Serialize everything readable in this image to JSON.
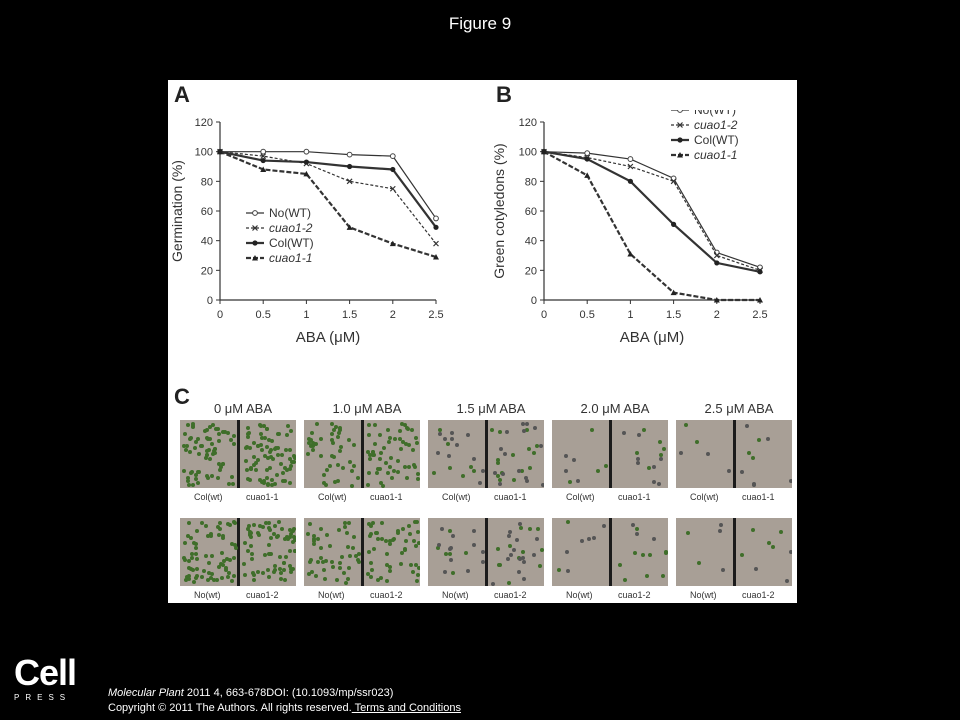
{
  "slide": {
    "title": "Figure 9"
  },
  "figure": {
    "panel_a": "A",
    "panel_b": "B",
    "panel_c": "C",
    "panel_c_concentrations": [
      "0 μM ABA",
      "1.0 μM ABA",
      "1.5 μM ABA",
      "2.0 μM ABA",
      "2.5 μM ABA"
    ],
    "panel_c_row1": {
      "left": "Col(wt)",
      "right": "cuao1-1"
    },
    "panel_c_row2": {
      "left": "No(wt)",
      "right": "cuao1-2"
    }
  },
  "chart_data": [
    {
      "type": "line",
      "panel": "A",
      "xlabel": "ABA (μM)",
      "ylabel": "Germination (%)",
      "x": [
        0,
        0.5,
        1,
        1.5,
        2,
        2.5
      ],
      "x_ticks": [
        "0",
        "0.5",
        "1",
        "1.5",
        "2",
        "2.5"
      ],
      "y_ticks": [
        "0",
        "20",
        "40",
        "60",
        "80",
        "100",
        "120"
      ],
      "xlim": [
        0,
        2.5
      ],
      "ylim": [
        0,
        120
      ],
      "legend_position": "center-left",
      "series": [
        {
          "name": "No(WT)",
          "values": [
            100,
            100,
            100,
            98,
            97,
            55
          ]
        },
        {
          "name": "cuao1-2",
          "values": [
            100,
            97,
            92,
            80,
            75,
            38
          ]
        },
        {
          "name": "Col(WT)",
          "values": [
            100,
            94,
            93,
            90,
            88,
            49
          ]
        },
        {
          "name": "cuao1-1",
          "values": [
            100,
            88,
            85,
            49,
            38,
            29
          ]
        }
      ]
    },
    {
      "type": "line",
      "panel": "B",
      "xlabel": "ABA (μM)",
      "ylabel": "Green cotyledons (%)",
      "x": [
        0,
        0.5,
        1,
        1.5,
        2,
        2.5
      ],
      "x_ticks": [
        "0",
        "0.5",
        "1",
        "1.5",
        "2",
        "2.5"
      ],
      "y_ticks": [
        "0",
        "20",
        "40",
        "60",
        "80",
        "100",
        "120"
      ],
      "xlim": [
        0,
        2.5
      ],
      "ylim": [
        0,
        120
      ],
      "legend_position": "top-right",
      "series": [
        {
          "name": "No(WT)",
          "values": [
            100,
            99,
            95,
            82,
            32,
            22
          ]
        },
        {
          "name": "cuao1-2",
          "values": [
            100,
            96,
            90,
            80,
            30,
            20
          ]
        },
        {
          "name": "Col(WT)",
          "values": [
            100,
            95,
            80,
            51,
            25,
            19
          ]
        },
        {
          "name": "cuao1-1",
          "values": [
            100,
            84,
            31,
            5,
            0,
            0
          ]
        }
      ]
    }
  ],
  "logo": {
    "word": "Cell",
    "press": "PRESS"
  },
  "citation": {
    "journal": "Molecular Plant",
    "reference": " 2011 4, 663-678DOI: (10.1093/mp/ssr023)",
    "copyright": "Copyright © 2011 The Authors. All rights reserved.",
    "terms_link": " Terms and Conditions"
  },
  "colors": {
    "seedling": "#3f6e2a",
    "agar": "#a89f96"
  }
}
